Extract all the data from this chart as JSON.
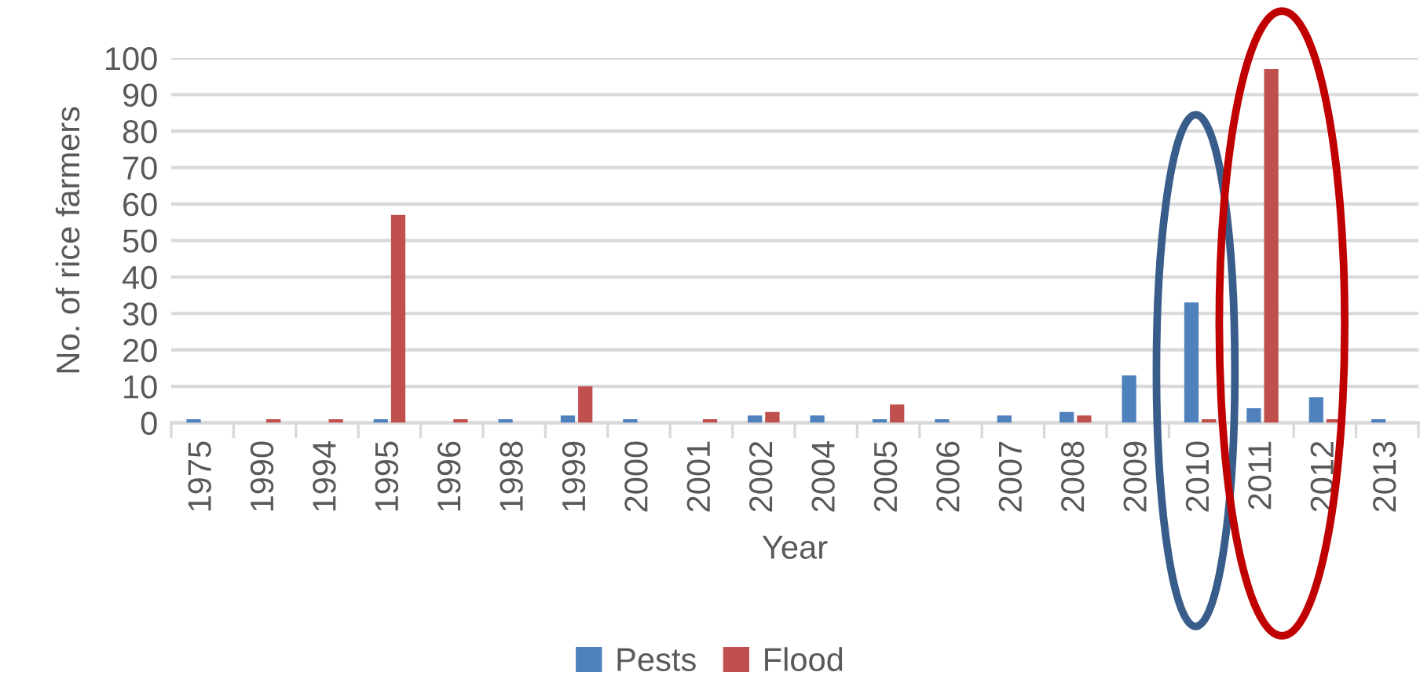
{
  "chart_data": {
    "type": "bar",
    "xlabel": "Year",
    "ylabel": "No. of rice farmers",
    "categories": [
      "1975",
      "1990",
      "1994",
      "1995",
      "1996",
      "1998",
      "1999",
      "2000",
      "2001",
      "2002",
      "2004",
      "2005",
      "2006",
      "2007",
      "2008",
      "2009",
      "2010",
      "2011",
      "2012",
      "2013"
    ],
    "series": [
      {
        "name": "Pests",
        "color": "#4f81bd",
        "values": [
          1,
          0,
          0,
          1,
          0,
          1,
          2,
          1,
          0,
          2,
          2,
          1,
          1,
          2,
          3,
          13,
          33,
          4,
          7,
          1
        ]
      },
      {
        "name": "Flood",
        "color": "#c0504d",
        "values": [
          0,
          1,
          1,
          57,
          1,
          0,
          10,
          0,
          1,
          3,
          0,
          5,
          0,
          0,
          2,
          0,
          1,
          97,
          1,
          0
        ]
      }
    ],
    "ylim": [
      0,
      100
    ],
    "yticks": [
      0,
      10,
      20,
      30,
      40,
      50,
      60,
      70,
      80,
      90,
      100
    ],
    "grid": "y",
    "legend": "bottom"
  }
}
